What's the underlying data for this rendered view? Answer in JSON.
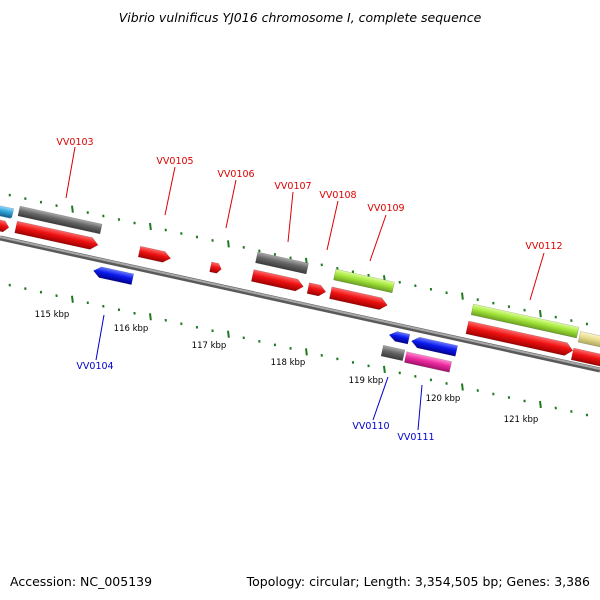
{
  "title": "Vibrio vulnificus YJ016 chromosome I, complete sequence",
  "accession_text": "Accession: NC_005139",
  "summary_text": "Topology: circular; Length: 3,354,505 bp; Genes: 3,386",
  "kbp_labels": [
    "115 kbp",
    "116 kbp",
    "117 kbp",
    "118 kbp",
    "119 kbp",
    "120 kbp",
    "121 kbp"
  ],
  "genes_forward": [
    "VV0103",
    "VV0105",
    "VV0106",
    "VV0107",
    "VV0108",
    "VV0109",
    "VV0112"
  ],
  "genes_reverse": [
    "VV0104",
    "VV0110",
    "VV0111"
  ],
  "colors": {
    "forward_label": "#dd0000",
    "reverse_label": "#0000cc",
    "backbone": "#8a8a8a",
    "tick": "#1f7a1f",
    "cds": "#ee1111",
    "gray_feature": "#666666",
    "reverse_cds": "#0a1aee",
    "green_feature": "#a4e63a",
    "pink_feature": "#ee2aa0",
    "tan_feature": "#e6dc8c",
    "cyan_feature": "#33aadd"
  }
}
